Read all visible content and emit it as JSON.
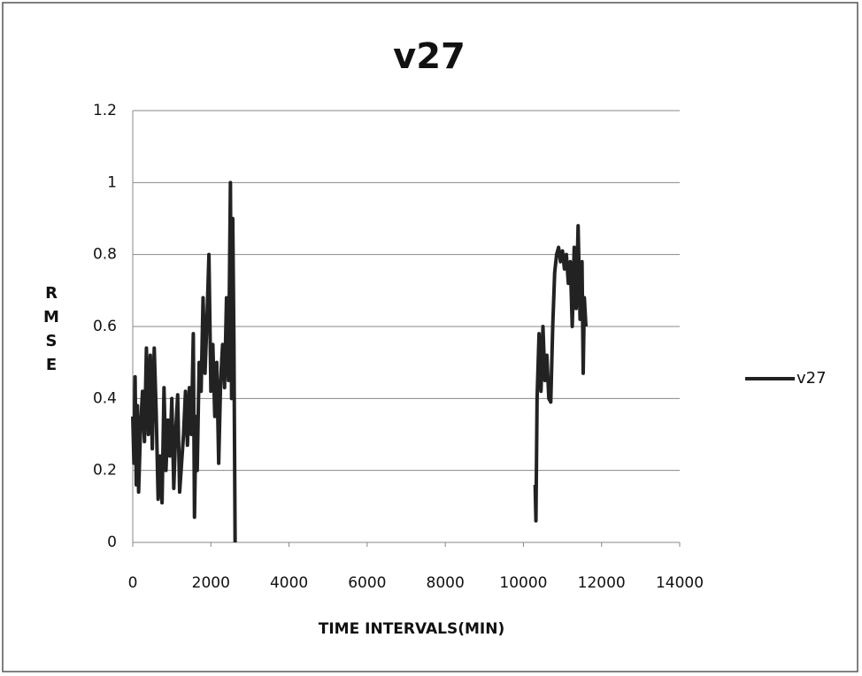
{
  "chart_data": {
    "type": "line",
    "title": "v27",
    "x_label": "TIME INTERVALS(MIN)",
    "y_label": "RMSE",
    "x": [
      0,
      30,
      60,
      90,
      120,
      150,
      200,
      250,
      300,
      350,
      400,
      450,
      500,
      550,
      600,
      650,
      700,
      750,
      800,
      850,
      900,
      950,
      1000,
      1050,
      1100,
      1150,
      1200,
      1250,
      1300,
      1350,
      1400,
      1450,
      1500,
      1550,
      1580,
      1620,
      1650,
      1700,
      1750,
      1800,
      1850,
      1900,
      1950,
      2000,
      2050,
      2100,
      2150,
      2200,
      2250,
      2300,
      2350,
      2400,
      2450,
      2500,
      2530,
      2560,
      2590,
      2620,
      2650,
      10300,
      10320,
      10350,
      10400,
      10450,
      10500,
      10550,
      10600,
      10650,
      10700,
      10750,
      10800,
      10850,
      10900,
      10950,
      11000,
      11050,
      11100,
      11150,
      11200,
      11250,
      11300,
      11350,
      11400,
      11450,
      11500,
      11530,
      11560,
      11600
    ],
    "series": [
      {
        "name": "v27",
        "color": "#222222",
        "values": [
          0.35,
          0.22,
          0.46,
          0.16,
          0.38,
          0.14,
          0.32,
          0.42,
          0.28,
          0.54,
          0.3,
          0.52,
          0.26,
          0.54,
          0.36,
          0.12,
          0.24,
          0.11,
          0.43,
          0.2,
          0.34,
          0.24,
          0.4,
          0.15,
          0.31,
          0.41,
          0.14,
          0.22,
          0.3,
          0.42,
          0.27,
          0.43,
          0.3,
          0.58,
          0.07,
          0.35,
          0.2,
          0.5,
          0.42,
          0.68,
          0.47,
          0.62,
          0.8,
          0.42,
          0.55,
          0.35,
          0.5,
          0.22,
          0.45,
          0.55,
          0.43,
          0.68,
          0.45,
          1.0,
          0.4,
          0.9,
          0.55,
          0.0,
          null,
          0.16,
          0.06,
          0.4,
          0.58,
          0.42,
          0.6,
          0.45,
          0.52,
          0.4,
          0.39,
          0.6,
          0.75,
          0.8,
          0.82,
          0.78,
          0.81,
          0.76,
          0.8,
          0.72,
          0.78,
          0.6,
          0.82,
          0.65,
          0.88,
          0.62,
          0.78,
          0.47,
          0.68,
          0.6
        ]
      }
    ],
    "xlim": [
      0,
      14000
    ],
    "xticks": [
      0,
      2000,
      4000,
      6000,
      8000,
      10000,
      12000,
      14000
    ],
    "ylim": [
      0,
      1.2
    ],
    "yticks": [
      0,
      0.2,
      0.4,
      0.6,
      0.8,
      1,
      1.2
    ],
    "grid": true,
    "legend": "right"
  }
}
